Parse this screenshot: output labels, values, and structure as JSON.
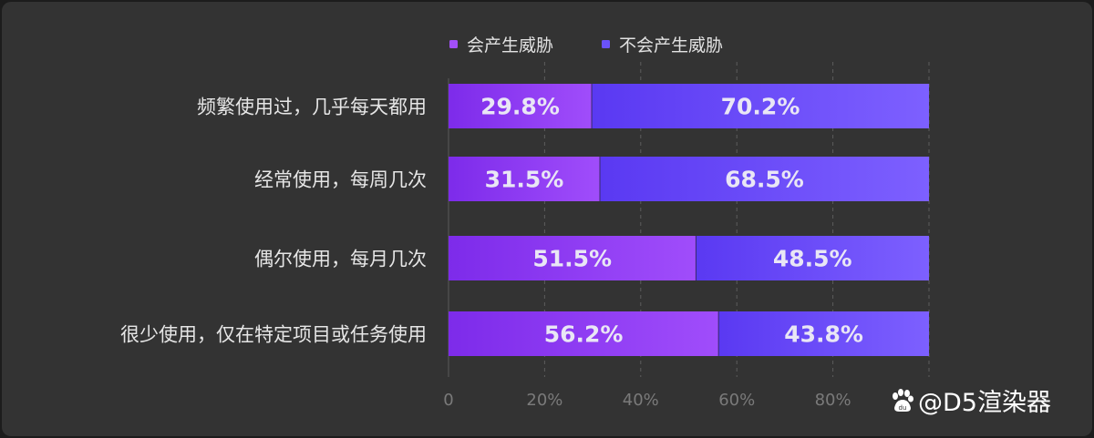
{
  "chart_data": {
    "type": "bar",
    "orientation": "horizontal",
    "stacked": true,
    "categories": [
      "频繁使用过，几乎每天都用",
      "经常使用，每周几次",
      "偶尔使用，每月几次",
      "很少使用，仅在特定项目或任务使用"
    ],
    "series": [
      {
        "name": "会产生威胁",
        "values": [
          29.8,
          31.5,
          51.5,
          56.2
        ],
        "labels": [
          "29.8%",
          "31.5%",
          "51.5%",
          "56.2%"
        ],
        "color": "#8f3cf5"
      },
      {
        "name": "不会产生威胁",
        "values": [
          70.2,
          68.5,
          48.5,
          43.8
        ],
        "labels": [
          "70.2%",
          "68.5%",
          "48.5%",
          "43.8%"
        ],
        "color": "#6a4cf8"
      }
    ],
    "xlim": [
      0,
      100
    ],
    "xticks": [
      0,
      20,
      40,
      60,
      80,
      100
    ],
    "xtick_labels": [
      "0",
      "20%",
      "40%",
      "60%",
      "80%",
      ""
    ],
    "grid": "vertical dashed",
    "legend_position": "top"
  },
  "watermark": {
    "text": "@D5渲染器",
    "icon": "baidu-paw-icon"
  }
}
